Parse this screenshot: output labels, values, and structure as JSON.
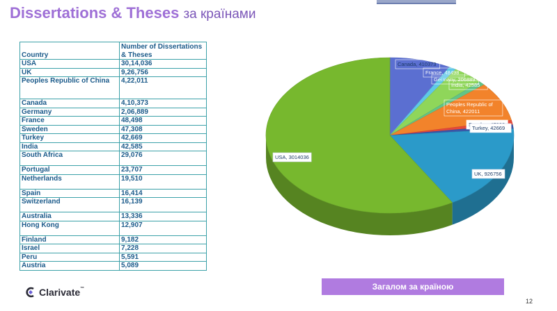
{
  "header": {
    "title_main": "Dissertations & Theses",
    "title_suffix": "за країнами"
  },
  "table": {
    "columns": [
      "Country",
      "Number of Dissertations & Theses"
    ],
    "rows": [
      [
        "USA",
        "30,14,036"
      ],
      [
        "UK",
        "9,26,756"
      ],
      [
        "Peoples Republic of China",
        "4,22,011"
      ],
      [
        "Canada",
        "4,10,373"
      ],
      [
        "Germany",
        "2,06,889"
      ],
      [
        "France",
        "48,498"
      ],
      [
        "Sweden",
        "47,308"
      ],
      [
        "Turkey",
        "42,669"
      ],
      [
        "India",
        "42,585"
      ],
      [
        "South Africa",
        "29,076"
      ],
      [
        "Portugal",
        "23,707"
      ],
      [
        "Netherlands",
        "19,510"
      ],
      [
        "Spain",
        "16,414"
      ],
      [
        "Switzerland",
        "16,139"
      ],
      [
        "Australia",
        "13,336"
      ],
      [
        "Hong Kong",
        "12,907"
      ],
      [
        "Finland",
        "9,182"
      ],
      [
        "Israel",
        "7,228"
      ],
      [
        "Peru",
        "5,591"
      ],
      [
        "Austria",
        "5,089"
      ]
    ]
  },
  "chart_data": {
    "type": "pie",
    "title": "",
    "slices": [
      {
        "label": "Canada",
        "value": 410373,
        "color": "#5b6fd1",
        "data_label": "Canada, 410373"
      },
      {
        "label": "France",
        "value": 48498,
        "color": "#5fc8e8",
        "data_label": "France, 48498"
      },
      {
        "label": "Germany",
        "value": 206889,
        "color": "#8fd65a",
        "data_label": "Germany, 206889"
      },
      {
        "label": "India",
        "value": 42585,
        "color": "#63c487",
        "data_label": "India, 42585"
      },
      {
        "label": "Peoples Republic of China",
        "value": 422011,
        "color": "#f2832b",
        "data_label": "Peoples Republic of China, 422011"
      },
      {
        "label": "Sweden",
        "value": 47308,
        "color": "#e6483a",
        "data_label": "Sweden, 47308"
      },
      {
        "label": "Turkey",
        "value": 42669,
        "color": "#3b56a8",
        "data_label": "Turkey, 42669"
      },
      {
        "label": "UK",
        "value": 926756,
        "color": "#2b9ac9",
        "data_label": "UK, 926756"
      },
      {
        "label": "USA",
        "value": 3014036,
        "color": "#77b82e",
        "data_label": "USA, 3014036"
      }
    ]
  },
  "logo": {
    "text": "Clarivate",
    "tm": "™"
  },
  "summary_button": {
    "label": "Загалом за країною"
  },
  "page_number": "12"
}
